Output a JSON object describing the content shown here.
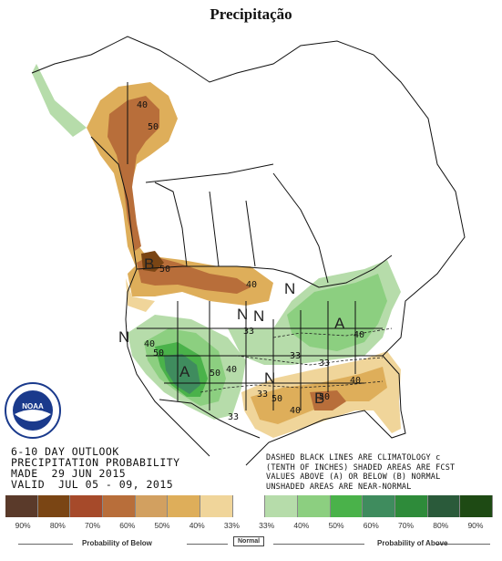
{
  "title": "Precipitação",
  "outlook": {
    "line1": "6-10 DAY OUTLOOK",
    "line2": "PRECIPITATION PROBABILITY",
    "line3": "MADE  29 JUN 2015",
    "line4": "VALID  JUL 05 - 09, 2015"
  },
  "note": {
    "line1": "DASHED BLACK LINES ARE CLIMATOLOGY c",
    "line2": "(TENTH OF INCHES) SHADED AREAS ARE FCST",
    "line3": "VALUES ABOVE (A) OR BELOW (B) NORMAL",
    "line4": "UNSHADED AREAS ARE NEAR-NORMAL"
  },
  "map_labels": {
    "a40": "40",
    "a50": "50",
    "b50": "50",
    "b40": "40",
    "b40b": "40",
    "n_west": "N",
    "n_center": "N",
    "n_east": "N",
    "n_north": "N",
    "n_south": "N",
    "b_west": "B",
    "b_south": "B",
    "a_west": "A",
    "a_east": "A",
    "c33a": "33",
    "c33b": "33",
    "c33c": "33",
    "c33d": "33",
    "c33e": "33",
    "c40a": "40",
    "c40b": "40",
    "c40c": "40",
    "c40d": "40",
    "c50a": "50",
    "c50b": "50",
    "c50c": "50",
    "c50d": "50"
  },
  "legend": {
    "colors": [
      "#5a3a2a",
      "#7a4514",
      "#a64a2a",
      "#b86e3a",
      "#d2a060",
      "#deae5a",
      "#f0d59a",
      "#ffffff",
      "#b6dcaa",
      "#8ccf80",
      "#4ab24a",
      "#3f8c5e",
      "#2e8b3a",
      "#2a5a3a",
      "#1e4a14"
    ],
    "pcts": [
      "90%",
      "80%",
      "70%",
      "60%",
      "50%",
      "40%",
      "33%",
      "33%",
      "40%",
      "50%",
      "60%",
      "70%",
      "80%",
      "90%"
    ],
    "below_label": "Probability of Below",
    "normal_label": "Normal",
    "above_label": "Probability of Above"
  },
  "logo": {
    "text": "NOAA"
  }
}
